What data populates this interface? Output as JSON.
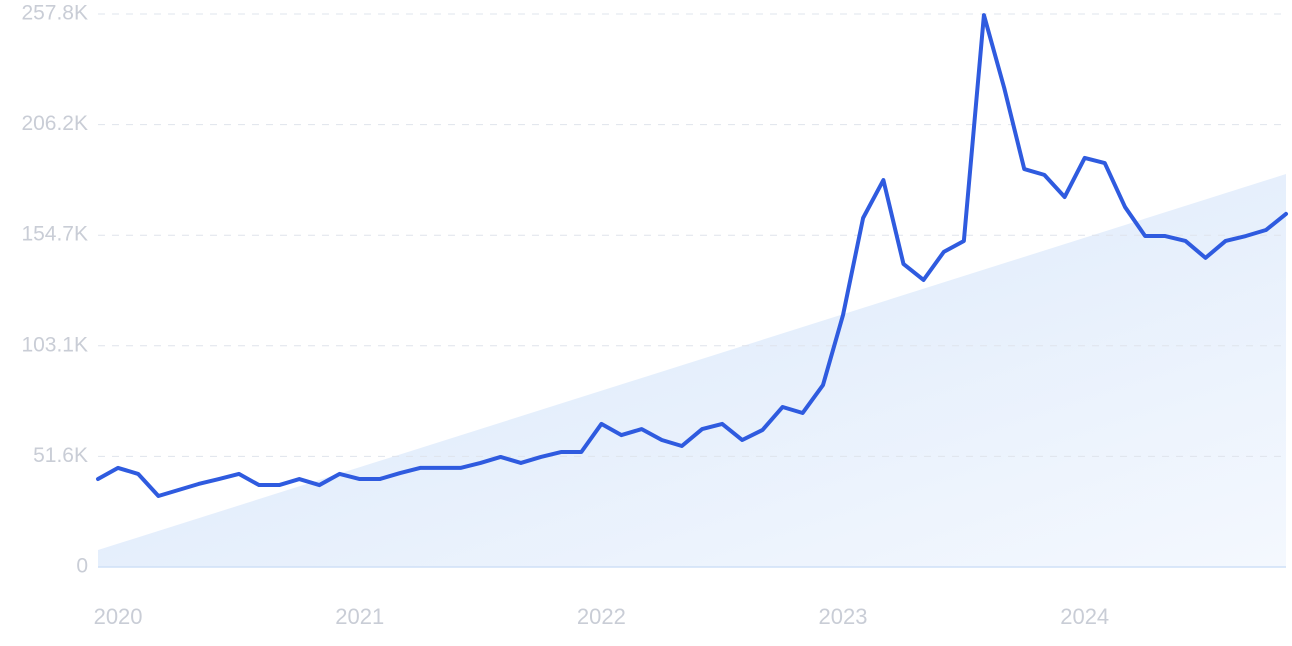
{
  "chart_data": {
    "type": "line",
    "x": [
      2019.917,
      2020,
      2020.083,
      2020.167,
      2020.25,
      2020.333,
      2020.417,
      2020.5,
      2020.583,
      2020.667,
      2020.75,
      2020.833,
      2020.917,
      2021,
      2021.083,
      2021.167,
      2021.25,
      2021.333,
      2021.417,
      2021.5,
      2021.583,
      2021.667,
      2021.75,
      2021.833,
      2021.917,
      2022,
      2022.083,
      2022.167,
      2022.25,
      2022.333,
      2022.417,
      2022.5,
      2022.583,
      2022.667,
      2022.75,
      2022.833,
      2022.917,
      2023,
      2023.083,
      2023.167,
      2023.25,
      2023.333,
      2023.417,
      2023.5,
      2023.583,
      2023.667,
      2023.75,
      2023.833,
      2023.917,
      2024,
      2024.083,
      2024.167,
      2024.25,
      2024.333,
      2024.417,
      2024.5,
      2024.583,
      2024.667,
      2024.75,
      2024.833
    ],
    "values": [
      41000,
      46200,
      43400,
      33100,
      35900,
      38700,
      41000,
      43400,
      38200,
      38200,
      41000,
      38200,
      43400,
      41000,
      41000,
      43800,
      46200,
      46200,
      46200,
      48500,
      51300,
      48500,
      51300,
      53600,
      53600,
      66700,
      61500,
      64300,
      59200,
      56400,
      64300,
      66700,
      59200,
      63900,
      74600,
      71800,
      84800,
      117500,
      162700,
      180400,
      141300,
      133800,
      146900,
      152000,
      257300,
      223300,
      185500,
      182800,
      172500,
      190700,
      188300,
      167800,
      154300,
      154300,
      152000,
      144100,
      152000,
      154300,
      157100,
      164600
    ],
    "color": "#2f5bdf",
    "trendline": {
      "values": [
        7900,
        183200
      ],
      "color": "#dce9fb"
    },
    "xlim": [
      2019.917,
      2024.833
    ],
    "xticks": [
      2020,
      2021,
      2022,
      2023,
      2024
    ],
    "ylim": [
      0,
      257800
    ],
    "yticks": [
      0,
      {
        "value": 51560,
        "label": "51.6K"
      },
      {
        "value": 103120,
        "label": "103.1K"
      },
      {
        "value": 154680,
        "label": "154.7K"
      },
      {
        "value": 206240,
        "label": "206.2K"
      },
      {
        "value": 257800,
        "label": "257.8K"
      }
    ],
    "grid": true
  }
}
